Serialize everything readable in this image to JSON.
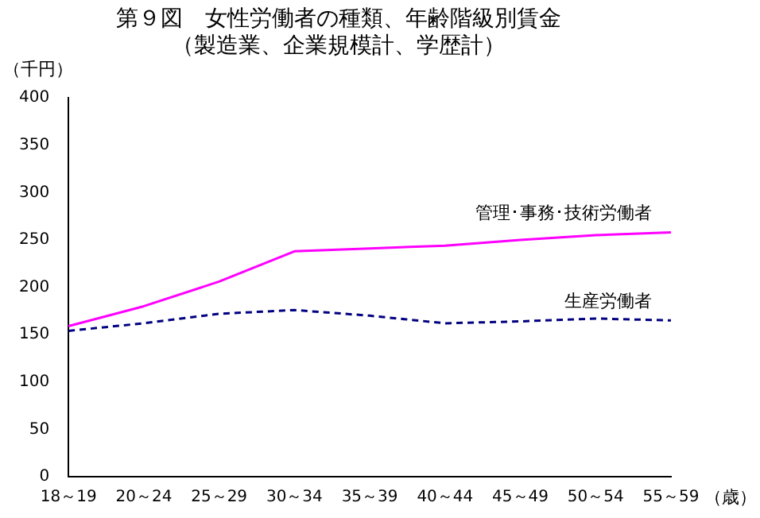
{
  "chart_data": {
    "type": "line",
    "title": "第９図　女性労働者の種類、年齢階級別賃金",
    "subtitle": "（製造業、企業規模計、学歴計）",
    "ylabel": "（千円）",
    "xlabel": "（歳）",
    "categories": [
      "18～19",
      "20～24",
      "25～29",
      "30～34",
      "35～39",
      "40～44",
      "45～49",
      "50～54",
      "55～59"
    ],
    "series": [
      {
        "name": "管理･事務･技術労働者",
        "color": "#ff00ff",
        "line_style": "solid",
        "values": [
          159,
          180,
          206,
          238,
          241,
          244,
          250,
          255,
          258
        ]
      },
      {
        "name": "生産労働者",
        "color": "#000080",
        "line_style": "dashed",
        "values": [
          154,
          162,
          172,
          176,
          170,
          162,
          164,
          167,
          165
        ]
      }
    ],
    "ylim": [
      0,
      400
    ],
    "yticks": [
      0,
      50,
      100,
      150,
      200,
      250,
      300,
      350,
      400
    ],
    "grid": false,
    "legend": false,
    "marker": "none"
  }
}
